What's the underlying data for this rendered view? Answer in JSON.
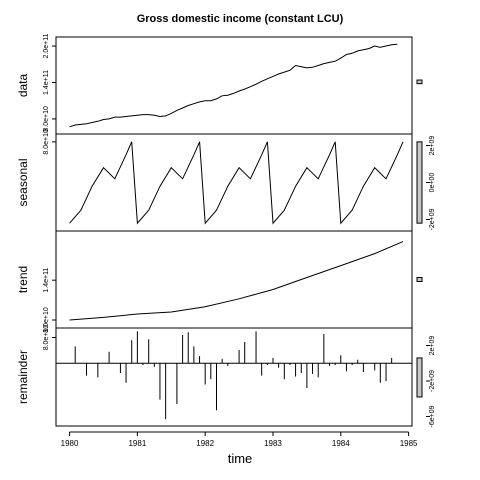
{
  "chart_data": {
    "type": "line",
    "title": "Gross domestic income (constant LCU)",
    "xlabel": "time",
    "x_ticks": [
      "1980",
      "1981",
      "1982",
      "1983",
      "1984",
      "1985"
    ],
    "xlim": [
      1979.8,
      1985.05
    ],
    "panels": [
      {
        "name": "data",
        "kind": "line",
        "ylim": [
          65000000000.0,
          205000000000.0
        ],
        "left_ticks": [
          {
            "v": 80000000000.0,
            "label": "8.0e+10"
          },
          {
            "v": 140000000000.0,
            "label": "1.4e+11"
          },
          {
            "v": 200000000000.0,
            "label": "2.0e+11"
          }
        ],
        "right_ticks": [],
        "x": [
          1980.0,
          1980.25,
          1980.5,
          1980.75,
          1981.0,
          1981.25,
          1981.5,
          1981.75,
          1982.0,
          1982.25,
          1982.5,
          1982.75,
          1983.0,
          1983.25,
          1983.5,
          1983.75,
          1984.0,
          1984.25,
          1984.5,
          1984.75
        ],
        "values": [
          67000000000.0,
          72000000000.0,
          76000000000.0,
          83000000000.0,
          86000000000.0,
          88000000000.0,
          86000000000.0,
          95000000000.0,
          108000000000.0,
          118000000000.0,
          124000000000.0,
          134000000000.0,
          145000000000.0,
          160000000000.0,
          170000000000.0,
          186000000000.0,
          182000000000.0,
          186000000000.0,
          192000000000.0,
          201000000000.0
        ],
        "x_full": [
          1980.0,
          1980.083,
          1980.167,
          1980.25,
          1980.333,
          1980.417,
          1980.5,
          1980.583,
          1980.667,
          1980.75,
          1980.833,
          1980.917,
          1981.0,
          1981.083,
          1981.167,
          1981.25,
          1981.333,
          1981.417,
          1981.5,
          1981.583,
          1981.667,
          1981.75,
          1981.833,
          1981.917,
          1982.0,
          1982.083,
          1982.167,
          1982.25,
          1982.333,
          1982.417,
          1982.5,
          1982.583,
          1982.667,
          1982.75,
          1982.833,
          1982.917,
          1983.0,
          1983.083,
          1983.167,
          1983.25,
          1983.333,
          1983.417,
          1983.5,
          1983.583,
          1983.667,
          1983.75,
          1983.833,
          1983.917,
          1984.0,
          1984.083,
          1984.167,
          1984.25,
          1984.333,
          1984.417,
          1984.5,
          1984.583,
          1984.667,
          1984.75,
          1984.833
        ],
        "values_full": [
          67000000000.0,
          70000000000.0,
          71000000000.0,
          72000000000.0,
          74000000000.0,
          76000000000.0,
          79000000000.0,
          80000000000.0,
          83000000000.0,
          83000000000.0,
          84000000000.0,
          85000000000.0,
          86000000000.0,
          87000000000.0,
          87000000000.0,
          86000000000.0,
          84000000000.0,
          85000000000.0,
          89000000000.0,
          94000000000.0,
          98000000000.0,
          102000000000.0,
          105000000000.0,
          108000000000.0,
          110000000000.0,
          110000000000.0,
          113000000000.0,
          118000000000.0,
          119000000000.0,
          122000000000.0,
          126000000000.0,
          129000000000.0,
          133000000000.0,
          137000000000.0,
          142000000000.0,
          146000000000.0,
          150000000000.0,
          154000000000.0,
          157000000000.0,
          160000000000.0,
          168000000000.0,
          166000000000.0,
          164000000000.0,
          165000000000.0,
          168000000000.0,
          171000000000.0,
          173000000000.0,
          175000000000.0,
          180000000000.0,
          186000000000.0,
          188000000000.0,
          192000000000.0,
          194000000000.0,
          196000000000.0,
          200000000000.0,
          198000000000.0,
          200000000000.0,
          202000000000.0,
          203000000000.0
        ],
        "range_bar": [
          138000000000.0,
          144000000000.0
        ]
      },
      {
        "name": "seasonal",
        "kind": "line",
        "ylim": [
          -2300000000.0,
          2300000000.0
        ],
        "left_ticks": [
          {
            "v": 2200000000.0,
            "label": "8.0e+10"
          }
        ],
        "right_ticks": [
          {
            "v": 2000000000.0,
            "label": "2e+09"
          },
          {
            "v": 0,
            "label": "0e+00"
          },
          {
            "v": -2000000000.0,
            "label": "-2e+09"
          }
        ],
        "x": [
          1980.0,
          1980.167,
          1980.333,
          1980.5,
          1980.667,
          1980.833,
          1980.917,
          1981.0,
          1981.167,
          1981.333,
          1981.5,
          1981.667,
          1981.833,
          1981.917,
          1982.0,
          1982.167,
          1982.333,
          1982.5,
          1982.667,
          1982.833,
          1982.917,
          1983.0,
          1983.167,
          1983.333,
          1983.5,
          1983.667,
          1983.833,
          1983.917,
          1984.0,
          1984.167,
          1984.333,
          1984.5,
          1984.667,
          1984.833,
          1984.917
        ],
        "values": [
          -2200000000.0,
          -1500000000.0,
          -200000000.0,
          800000000.0,
          200000000.0,
          1500000000.0,
          2200000000.0,
          -2200000000.0,
          -1500000000.0,
          -200000000.0,
          800000000.0,
          200000000.0,
          1500000000.0,
          2200000000.0,
          -2200000000.0,
          -1500000000.0,
          -200000000.0,
          800000000.0,
          200000000.0,
          1500000000.0,
          2200000000.0,
          -2200000000.0,
          -1500000000.0,
          -200000000.0,
          800000000.0,
          200000000.0,
          1500000000.0,
          2200000000.0,
          -2200000000.0,
          -1500000000.0,
          -200000000.0,
          800000000.0,
          200000000.0,
          1500000000.0,
          2200000000.0
        ],
        "range_bar": [
          -2200000000.0,
          2200000000.0
        ]
      },
      {
        "name": "trend",
        "kind": "line",
        "ylim": [
          77000000000.0,
          205000000000.0
        ],
        "left_ticks": [
          {
            "v": 80000000000.0,
            "label": "8.0e+10"
          },
          {
            "v": 140000000000.0,
            "label": "1.4e+11"
          }
        ],
        "right_ticks": [],
        "x": [
          1980.0,
          1980.5,
          1981.0,
          1981.5,
          1982.0,
          1982.5,
          1983.0,
          1983.5,
          1984.0,
          1984.5,
          1984.917
        ],
        "values": [
          80000000000.0,
          84000000000.0,
          89000000000.0,
          92000000000.0,
          100000000000.0,
          112000000000.0,
          126000000000.0,
          144000000000.0,
          162000000000.0,
          180000000000.0,
          198000000000.0
        ],
        "range_bar": [
          138000000000.0,
          144000000000.0
        ]
      },
      {
        "name": "remainder",
        "kind": "hist",
        "ylim": [
          -6400000000.0,
          3300000000.0
        ],
        "left_ticks": [
          {
            "v": 2900000000.0,
            "label": "8.0e+10"
          }
        ],
        "right_ticks": [
          {
            "v": 2000000000.0,
            "label": "2e+09"
          },
          {
            "v": -2000000000.0,
            "label": "-2e+09"
          },
          {
            "v": -6000000000.0,
            "label": "-6e+09"
          }
        ],
        "x": [
          1980.083,
          1980.25,
          1980.417,
          1980.583,
          1980.75,
          1980.833,
          1980.917,
          1981.0,
          1981.083,
          1981.167,
          1981.25,
          1981.333,
          1981.417,
          1981.583,
          1981.667,
          1981.75,
          1981.833,
          1981.917,
          1982.0,
          1982.083,
          1982.167,
          1982.25,
          1982.333,
          1982.5,
          1982.583,
          1982.75,
          1982.833,
          1982.917,
          1983.0,
          1983.083,
          1983.167,
          1983.25,
          1983.333,
          1983.417,
          1983.5,
          1983.583,
          1983.667,
          1983.75,
          1983.833,
          1983.917,
          1984.0,
          1984.083,
          1984.167,
          1984.25,
          1984.333,
          1984.5,
          1984.583,
          1984.667,
          1984.75
        ],
        "values": [
          1900000000.0,
          -1400000000.0,
          -1600000000.0,
          1300000000.0,
          -1100000000.0,
          -2200000000.0,
          2600000000.0,
          3600000000.0,
          -200000000.0,
          2700000000.0,
          -400000000.0,
          -4100000000.0,
          -6300000000.0,
          -4600000000.0,
          3200000000.0,
          3500000000.0,
          1900000000.0,
          800000000.0,
          -2400000000.0,
          -1800000000.0,
          -5300000000.0,
          500000000.0,
          -300000000.0,
          1500000000.0,
          2400000000.0,
          3600000000.0,
          -1400000000.0,
          -200000000.0,
          600000000.0,
          -500000000.0,
          -1800000000.0,
          -200000000.0,
          -1500000000.0,
          -1100000000.0,
          -2800000000.0,
          -1200000000.0,
          -1600000000.0,
          3300000000.0,
          -300000000.0,
          -200000000.0,
          900000000.0,
          -900000000.0,
          -200000000.0,
          400000000.0,
          -1000000000.0,
          -800000000.0,
          -2200000000.0,
          -2000000000.0,
          600000000.0
        ],
        "range_bar": [
          -3800000000.0,
          600000000.0
        ]
      }
    ]
  }
}
